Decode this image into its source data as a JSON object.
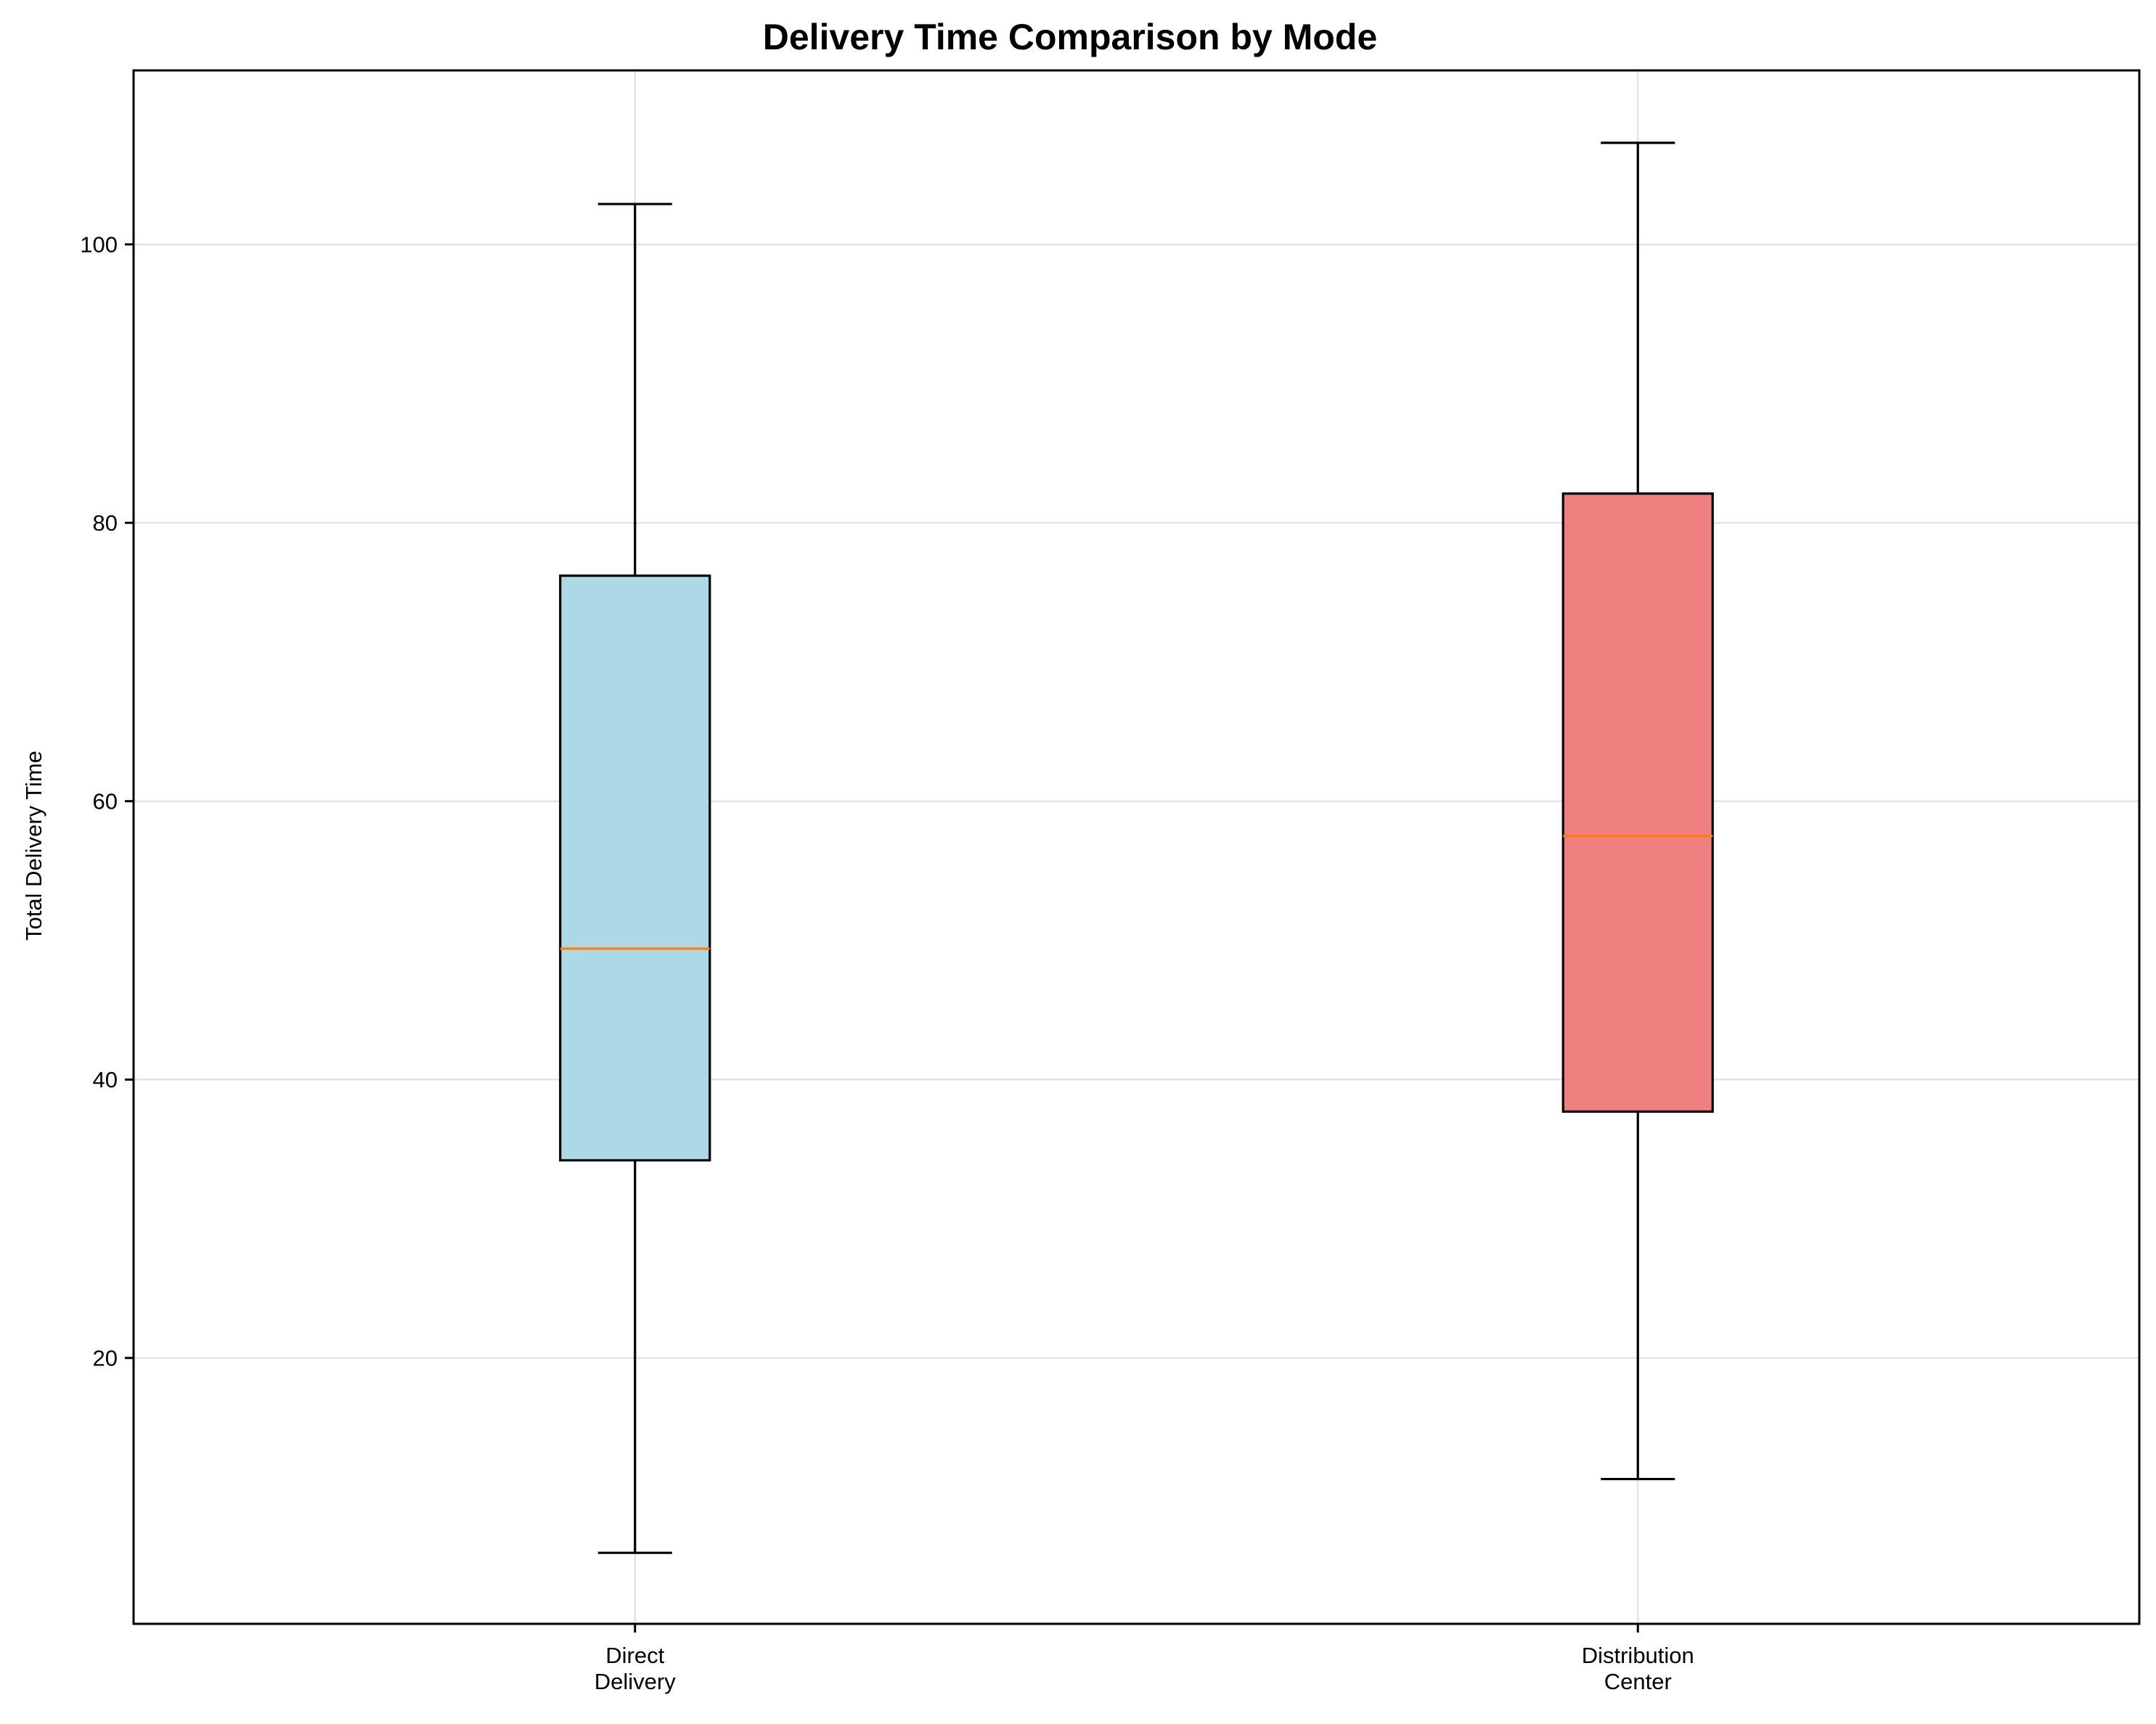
{
  "chart_data": {
    "type": "box",
    "title": "Delivery Time Comparison by Mode",
    "xlabel": "",
    "ylabel": "Total Delivery Time",
    "ylim": [
      0.9,
      112.5
    ],
    "yticks": [
      20,
      40,
      60,
      80,
      100
    ],
    "grid": true,
    "legend": "none",
    "median_color": "#ff7f0e",
    "categories": [
      {
        "label_lines": [
          "Direct",
          "Delivery"
        ],
        "color": "#add8e6",
        "whisker_low": 6.0,
        "q1": 34.2,
        "median": 49.4,
        "q3": 76.2,
        "whisker_high": 102.9
      },
      {
        "label_lines": [
          "Distribution",
          "Center"
        ],
        "color": "#f08080",
        "whisker_low": 11.3,
        "q1": 37.7,
        "median": 57.5,
        "q3": 82.1,
        "whisker_high": 107.3
      }
    ]
  }
}
